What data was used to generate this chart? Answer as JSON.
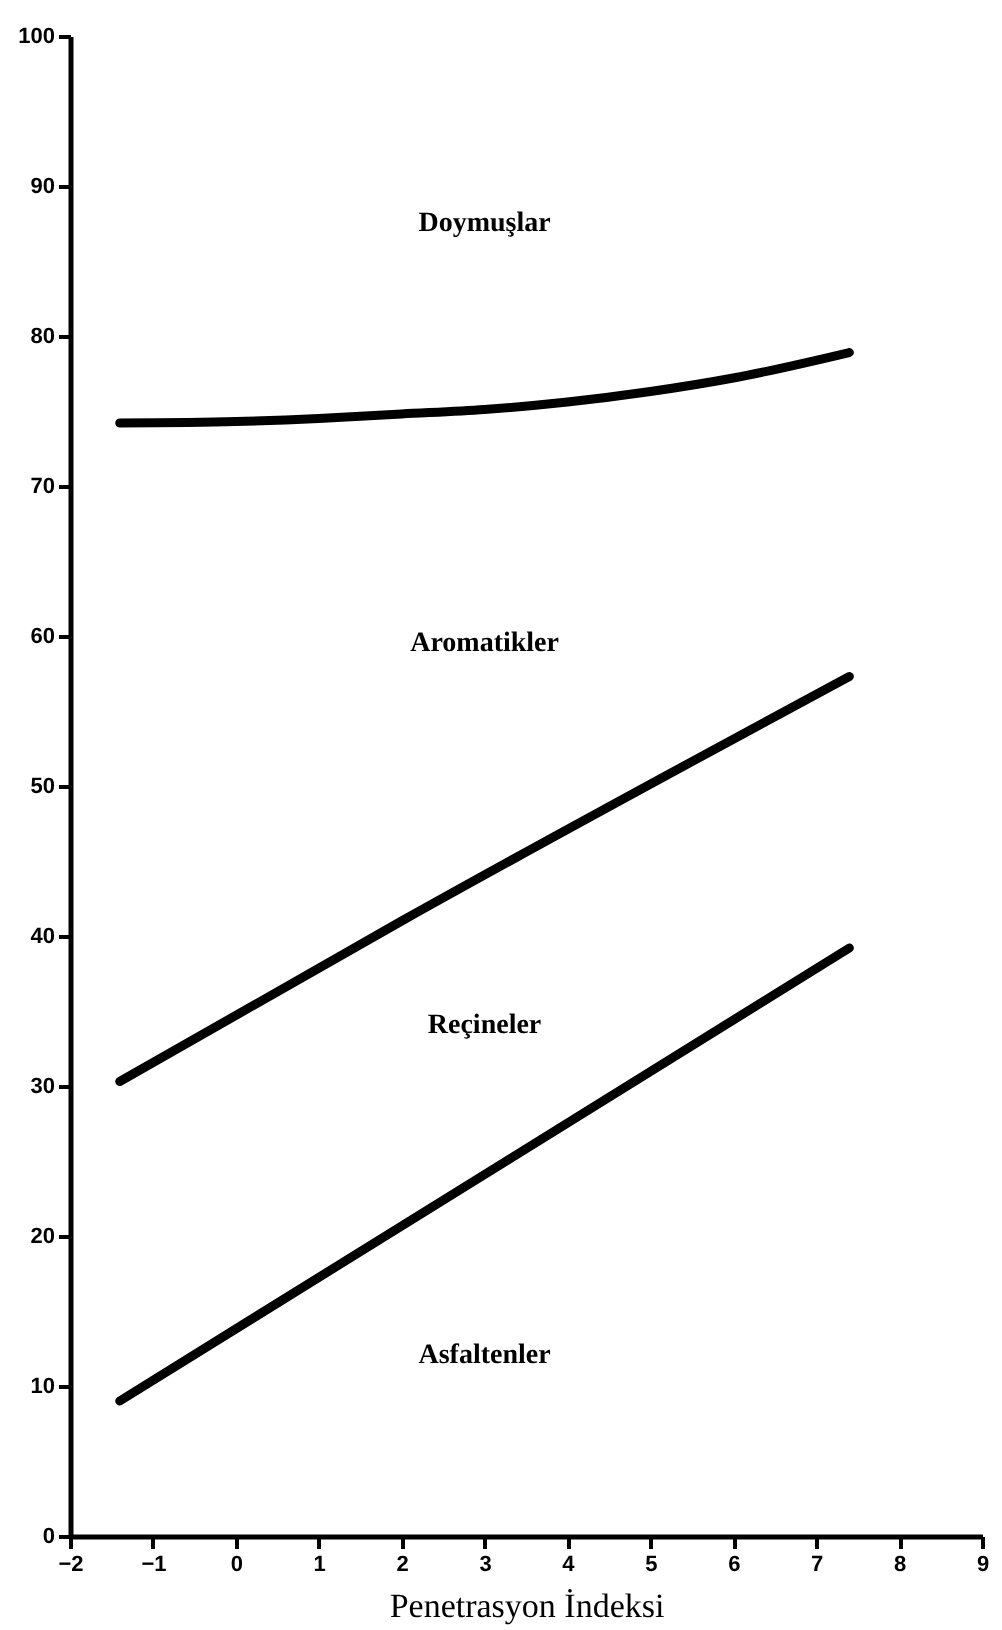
{
  "chart_data": {
    "type": "line",
    "xlabel": "Penetrasyon İndeksi",
    "xlim": [
      -2,
      9
    ],
    "xticks": [
      -2,
      -1,
      0,
      1,
      2,
      3,
      4,
      5,
      6,
      7,
      8,
      9
    ],
    "ylim": [
      0,
      100
    ],
    "yticks": [
      0,
      10,
      20,
      30,
      40,
      50,
      60,
      70,
      80,
      90,
      100
    ],
    "grid": false,
    "marker": "none",
    "line_style": "solid",
    "series": [
      {
        "color": "#000000",
        "x": [
          -1.4,
          0,
          1,
          2,
          3,
          4,
          5,
          6,
          7.4
        ],
        "values": [
          74.2,
          74.3,
          74.5,
          74.8,
          75.1,
          75.6,
          76.3,
          77.2,
          78.9
        ]
      },
      {
        "color": "#000000",
        "x": [
          -1.4,
          2,
          7.4
        ],
        "values": [
          30.3,
          41.0,
          57.3
        ]
      },
      {
        "color": "#000000",
        "x": [
          -1.4,
          7.4
        ],
        "values": [
          9.0,
          39.2
        ]
      }
    ],
    "annotations": [
      "Doymuşlar",
      "Aromatikler",
      "Reçineler",
      "Asfaltenler"
    ]
  }
}
